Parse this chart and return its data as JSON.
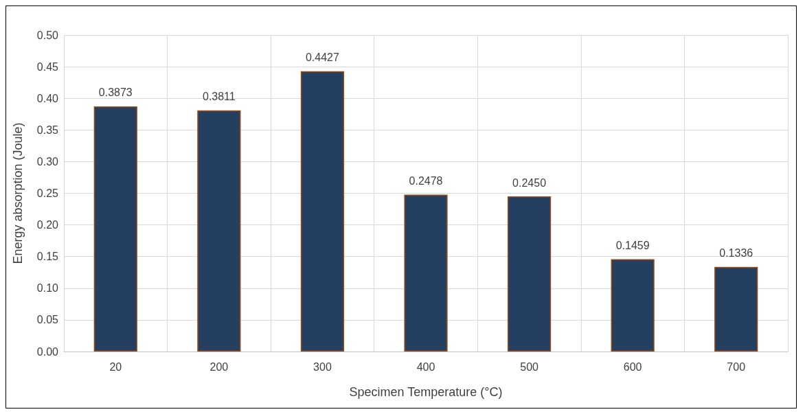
{
  "chart_data": {
    "type": "bar",
    "xlabel": "Specimen Temperature (°C)",
    "ylabel": "Energy absorption (Joule)",
    "categories": [
      "20",
      "200",
      "300",
      "400",
      "500",
      "600",
      "700"
    ],
    "values": [
      0.3873,
      0.3811,
      0.4427,
      0.2478,
      0.245,
      0.1459,
      0.1336
    ],
    "value_labels": [
      "0.3873",
      "0.3811",
      "0.4427",
      "0.2478",
      "0.2450",
      "0.1459",
      "0.1336"
    ],
    "color": "#243f60",
    "ylim": [
      0,
      0.5
    ],
    "yticks": [
      {
        "value": 0,
        "label": "0.00"
      },
      {
        "value": 0.05,
        "label": "0.05"
      },
      {
        "value": 0.1,
        "label": "0.10"
      },
      {
        "value": 0.15,
        "label": "0.15"
      },
      {
        "value": 0.2,
        "label": "0.20"
      },
      {
        "value": 0.25,
        "label": "0.25"
      },
      {
        "value": 0.3,
        "label": "0.30"
      },
      {
        "value": 0.35,
        "label": "0.35"
      },
      {
        "value": 0.4,
        "label": "0.40"
      },
      {
        "value": 0.45,
        "label": "0.45"
      },
      {
        "value": 0.5,
        "label": "0.50"
      }
    ],
    "grid": true
  }
}
